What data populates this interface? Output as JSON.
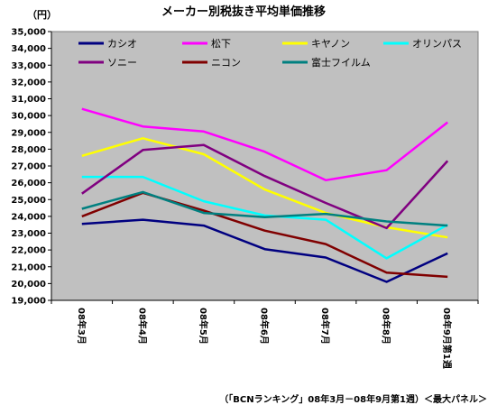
{
  "chart_data": {
    "type": "line",
    "title": "メーカー別税抜き平均単価推移",
    "y_unit_label": "（円）",
    "source_note": "（「BCNランキング」08年3月－08年9月第1週）＜最大パネル＞",
    "categories": [
      "08年3月",
      "08年4月",
      "08年5月",
      "08年6月",
      "08年7月",
      "08年8月",
      "08年9月第1週"
    ],
    "ylim": [
      19000,
      35000
    ],
    "y_ticks": [
      "19,000",
      "20,000",
      "21,000",
      "22,000",
      "23,000",
      "24,000",
      "25,000",
      "26,000",
      "27,000",
      "28,000",
      "29,000",
      "30,000",
      "31,000",
      "32,000",
      "33,000",
      "34,000",
      "35,000"
    ],
    "grid": false,
    "plot_background": "#c0c0c0",
    "legend_position": "top-inside",
    "series": [
      {
        "name": "カシオ",
        "color": "#000080",
        "values": [
          23550,
          23800,
          23450,
          22050,
          21550,
          20100,
          21800
        ]
      },
      {
        "name": "松下",
        "color": "#ff00ff",
        "values": [
          30400,
          29350,
          29050,
          27850,
          26150,
          26750,
          29600
        ]
      },
      {
        "name": "キヤノン",
        "color": "#ffff00",
        "values": [
          27600,
          28650,
          27700,
          25600,
          24200,
          23350,
          22750
        ]
      },
      {
        "name": "オリンパス",
        "color": "#00ffff",
        "values": [
          26350,
          26350,
          24900,
          24050,
          23800,
          21500,
          23500
        ]
      },
      {
        "name": "ソニー",
        "color": "#800080",
        "values": [
          25350,
          27950,
          28250,
          26400,
          24800,
          23300,
          27300
        ]
      },
      {
        "name": "ニコン",
        "color": "#800000",
        "values": [
          24000,
          25400,
          24350,
          23150,
          22350,
          20650,
          20400
        ]
      },
      {
        "name": "富士フイルム",
        "color": "#008080",
        "values": [
          24450,
          25450,
          24200,
          23950,
          24150,
          23700,
          23450
        ]
      }
    ]
  }
}
